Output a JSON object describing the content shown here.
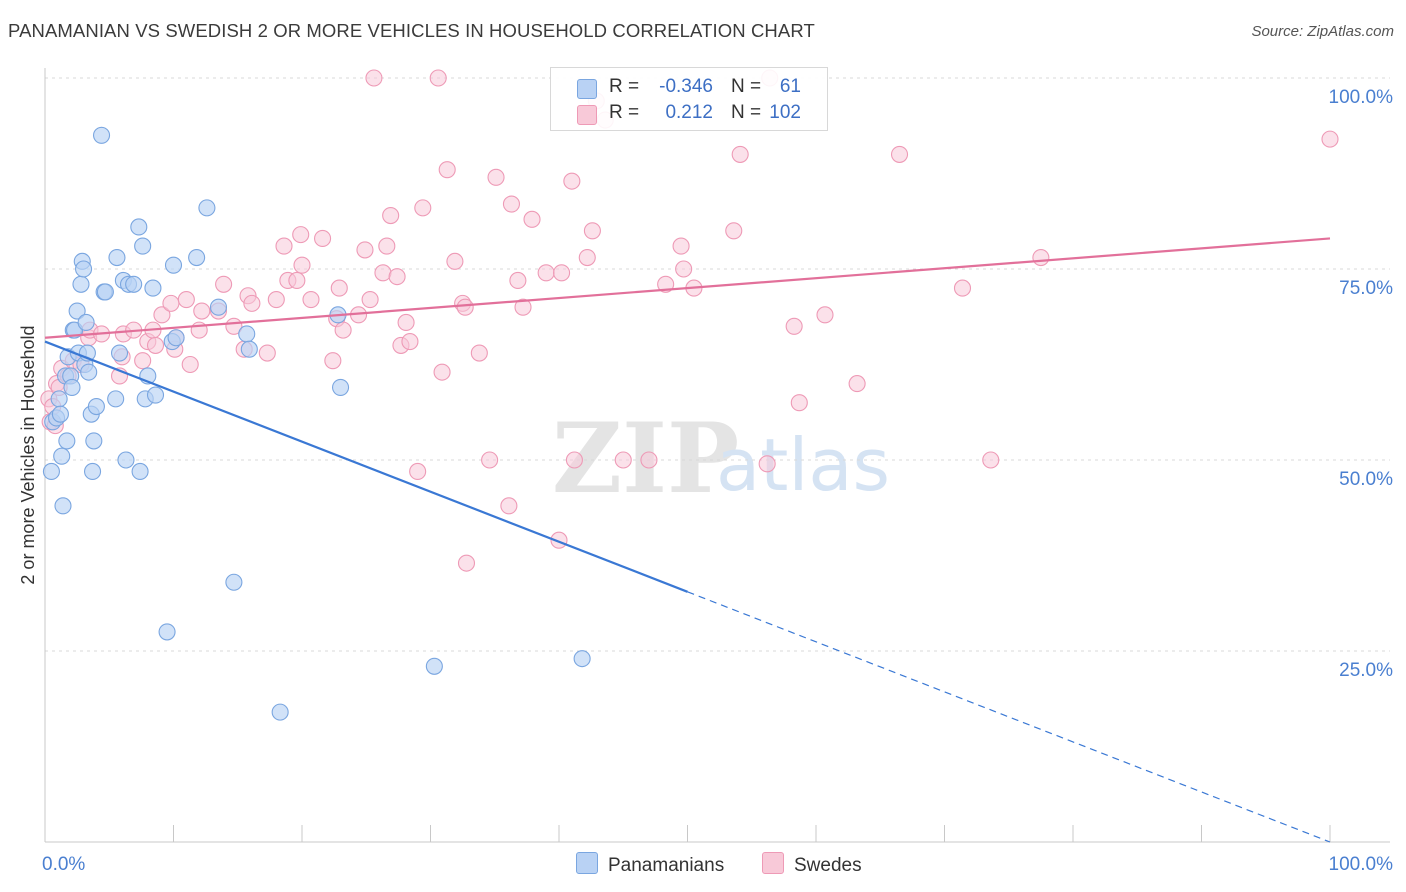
{
  "title": "PANAMANIAN VS SWEDISH 2 OR MORE VEHICLES IN HOUSEHOLD CORRELATION CHART",
  "source": "Source: ZipAtlas.com",
  "watermark": {
    "zip": "ZIP",
    "atlas": "atlas"
  },
  "legend_stats": [
    {
      "r_label": "R =",
      "r_value": "-0.346",
      "n_label": "N =",
      "n_value": "61"
    },
    {
      "r_label": "R =",
      "r_value": "0.212",
      "n_label": "N =",
      "n_value": "102"
    }
  ],
  "legend_bottom": [
    "Panamanians",
    "Swedes"
  ],
  "colors": {
    "blue_fill": "#b9d2f4",
    "blue_stroke": "#7aa6e0",
    "blue_line": "#3a78d4",
    "pink_fill": "#f8c9d8",
    "pink_stroke": "#ee9ab6",
    "pink_line": "#e2709a",
    "tick_label": "#4a7fd0",
    "grid": "#d9d9d9"
  },
  "chart_data": {
    "type": "scatter",
    "title": "PANAMANIAN VS SWEDISH 2 OR MORE VEHICLES IN HOUSEHOLD CORRELATION CHART",
    "xlabel": "",
    "ylabel": "2 or more Vehicles in Household",
    "xlim": [
      0,
      100
    ],
    "ylim": [
      0,
      100
    ],
    "x_tick_labels": [
      "0.0%",
      "100.0%"
    ],
    "y_ticks": [
      25,
      50,
      75,
      100
    ],
    "y_tick_labels": [
      "25.0%",
      "50.0%",
      "75.0%",
      "100.0%"
    ],
    "grid": true,
    "series": [
      {
        "name": "Panamanians",
        "points": [
          [
            0.5,
            48.5
          ],
          [
            0.6,
            55
          ],
          [
            0.9,
            55.5
          ],
          [
            1.1,
            58
          ],
          [
            1.2,
            56
          ],
          [
            1.3,
            50.5
          ],
          [
            1.4,
            44
          ],
          [
            1.6,
            61
          ],
          [
            1.7,
            52.5
          ],
          [
            1.8,
            63.5
          ],
          [
            2.0,
            61
          ],
          [
            2.1,
            59.5
          ],
          [
            2.2,
            67
          ],
          [
            2.3,
            67
          ],
          [
            2.5,
            69.5
          ],
          [
            2.6,
            64
          ],
          [
            2.8,
            73
          ],
          [
            2.9,
            76
          ],
          [
            3.0,
            75
          ],
          [
            3.1,
            62.5
          ],
          [
            3.2,
            68
          ],
          [
            3.3,
            64
          ],
          [
            3.4,
            61.5
          ],
          [
            3.6,
            56
          ],
          [
            3.7,
            48.5
          ],
          [
            3.8,
            52.5
          ],
          [
            4.0,
            57
          ],
          [
            4.4,
            92.5
          ],
          [
            4.6,
            72
          ],
          [
            4.7,
            72
          ],
          [
            5.5,
            58
          ],
          [
            5.6,
            76.5
          ],
          [
            5.8,
            64
          ],
          [
            6.1,
            73.5
          ],
          [
            6.3,
            50
          ],
          [
            6.5,
            73
          ],
          [
            6.9,
            73
          ],
          [
            7.3,
            80.5
          ],
          [
            7.4,
            48.5
          ],
          [
            7.6,
            78
          ],
          [
            7.8,
            58
          ],
          [
            8.0,
            61
          ],
          [
            8.4,
            72.5
          ],
          [
            8.6,
            58.5
          ],
          [
            9.5,
            27.5
          ],
          [
            9.9,
            65.5
          ],
          [
            10.0,
            75.5
          ],
          [
            10.2,
            66
          ],
          [
            11.8,
            76.5
          ],
          [
            12.6,
            83
          ],
          [
            13.5,
            70
          ],
          [
            14.7,
            34
          ],
          [
            15.7,
            66.5
          ],
          [
            15.9,
            64.5
          ],
          [
            18.3,
            17
          ],
          [
            22.8,
            69
          ],
          [
            23.0,
            59.5
          ],
          [
            30.3,
            23
          ],
          [
            41.8,
            24
          ]
        ]
      },
      {
        "name": "Swedes",
        "points": [
          [
            0.3,
            58
          ],
          [
            0.4,
            55
          ],
          [
            0.6,
            57
          ],
          [
            0.8,
            54.5
          ],
          [
            0.9,
            60
          ],
          [
            1.1,
            59.5
          ],
          [
            1.3,
            62
          ],
          [
            1.8,
            61
          ],
          [
            2.2,
            63
          ],
          [
            2.8,
            62.5
          ],
          [
            3.4,
            66
          ],
          [
            3.5,
            67
          ],
          [
            4.4,
            66.5
          ],
          [
            5.8,
            61
          ],
          [
            6.0,
            63.5
          ],
          [
            6.1,
            66.5
          ],
          [
            6.9,
            67
          ],
          [
            7.6,
            63
          ],
          [
            8.0,
            65.5
          ],
          [
            8.4,
            67
          ],
          [
            8.6,
            65
          ],
          [
            9.1,
            69
          ],
          [
            9.8,
            70.5
          ],
          [
            10.1,
            64.5
          ],
          [
            10.2,
            66
          ],
          [
            11.0,
            71
          ],
          [
            11.3,
            62.5
          ],
          [
            12.0,
            67
          ],
          [
            12.2,
            69.5
          ],
          [
            13.5,
            69.5
          ],
          [
            13.9,
            73
          ],
          [
            14.7,
            67.5
          ],
          [
            15.5,
            64.5
          ],
          [
            15.8,
            71.5
          ],
          [
            16.1,
            70.5
          ],
          [
            17.3,
            64
          ],
          [
            18.0,
            71
          ],
          [
            18.6,
            78
          ],
          [
            18.9,
            73.5
          ],
          [
            19.6,
            73.5
          ],
          [
            19.9,
            79.5
          ],
          [
            20.0,
            75.5
          ],
          [
            20.7,
            71
          ],
          [
            21.6,
            79
          ],
          [
            22.4,
            63
          ],
          [
            22.7,
            68.5
          ],
          [
            22.9,
            72.5
          ],
          [
            23.2,
            67
          ],
          [
            24.4,
            69
          ],
          [
            24.9,
            77.5
          ],
          [
            25.3,
            71
          ],
          [
            25.6,
            100
          ],
          [
            26.3,
            74.5
          ],
          [
            26.6,
            78
          ],
          [
            26.9,
            82
          ],
          [
            27.4,
            74
          ],
          [
            27.7,
            65
          ],
          [
            28.1,
            68
          ],
          [
            28.4,
            65.5
          ],
          [
            29.0,
            48.5
          ],
          [
            29.4,
            83
          ],
          [
            30.6,
            100
          ],
          [
            30.9,
            61.5
          ],
          [
            31.3,
            88
          ],
          [
            31.9,
            76
          ],
          [
            32.5,
            70.5
          ],
          [
            32.7,
            70
          ],
          [
            32.8,
            36.5
          ],
          [
            33.8,
            64
          ],
          [
            34.6,
            50
          ],
          [
            35.1,
            87
          ],
          [
            36.1,
            44
          ],
          [
            36.3,
            83.5
          ],
          [
            36.8,
            73.5
          ],
          [
            37.2,
            70
          ],
          [
            37.9,
            81.5
          ],
          [
            39.0,
            74.5
          ],
          [
            40.0,
            39.5
          ],
          [
            40.2,
            74.5
          ],
          [
            41.0,
            86.5
          ],
          [
            41.2,
            50
          ],
          [
            42.2,
            76.5
          ],
          [
            42.6,
            80
          ],
          [
            42.9,
            97
          ],
          [
            43.6,
            94.5
          ],
          [
            45.0,
            50
          ],
          [
            47.0,
            50
          ],
          [
            48.3,
            73
          ],
          [
            49.5,
            78
          ],
          [
            49.7,
            75
          ],
          [
            50.5,
            72.5
          ],
          [
            53.6,
            80
          ],
          [
            54.1,
            90
          ],
          [
            56.2,
            49.5
          ],
          [
            56.4,
            100
          ],
          [
            58.3,
            67.5
          ],
          [
            58.7,
            57.5
          ],
          [
            60.7,
            69
          ],
          [
            63.2,
            60
          ],
          [
            66.5,
            90
          ],
          [
            71.4,
            72.5
          ],
          [
            73.6,
            50
          ],
          [
            77.5,
            76.5
          ],
          [
            100,
            92
          ]
        ]
      }
    ],
    "trend_lines": [
      {
        "series": "Panamanians",
        "x_start": 0,
        "y_start": 65.5,
        "x_end": 100,
        "y_end": 0,
        "solid_until_x": 50
      },
      {
        "series": "Swedes",
        "x_start": 0,
        "y_start": 66,
        "x_end": 100,
        "y_end": 79
      }
    ]
  }
}
